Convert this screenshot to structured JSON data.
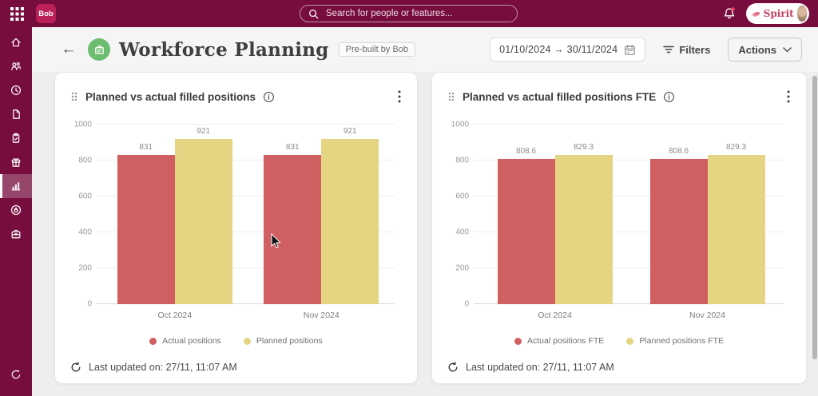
{
  "topbar": {
    "logo": "Bob",
    "search_placeholder": "Search for people or features...",
    "workspace_label": "Spirit"
  },
  "sidebar": {
    "items": [
      {
        "icon": "home"
      },
      {
        "icon": "people"
      },
      {
        "icon": "clock"
      },
      {
        "icon": "document"
      },
      {
        "icon": "clipboard"
      },
      {
        "icon": "gift"
      },
      {
        "icon": "bar-chart",
        "active": true
      },
      {
        "icon": "privacy-lock"
      },
      {
        "icon": "briefcase"
      }
    ],
    "bottom_icon": "whats-new"
  },
  "header": {
    "title": "Workforce Planning",
    "badge": "Pre-built by Bob",
    "date_range": "01/10/2024 → 30/11/2024",
    "filters_label": "Filters",
    "actions_label": "Actions"
  },
  "cards": [
    {
      "last_updated": "Last updated on: 27/11, 11:07 AM"
    },
    {
      "last_updated": "Last updated on: 27/11, 11:07 AM"
    }
  ],
  "colors": {
    "topbar": "#770d3e",
    "logo_badge": "#bb2059",
    "accent_green": "#6cbd6f",
    "bar_red": "#d05f62",
    "bar_yellow": "#e5d583"
  },
  "chart_data": [
    {
      "type": "bar",
      "title": "Planned vs actual filled positions",
      "categories": [
        "Oct 2024",
        "Nov 2024"
      ],
      "series": [
        {
          "name": "Actual positions",
          "color": "#d05f62",
          "values": [
            831,
            831
          ]
        },
        {
          "name": "Planned positions",
          "color": "#e5d583",
          "values": [
            921,
            921
          ]
        }
      ],
      "xlabel": "",
      "ylabel": "",
      "ylim": [
        0,
        1000
      ],
      "yticks": [
        0,
        200,
        400,
        600,
        800,
        1000
      ],
      "grid": true,
      "legend_position": "bottom"
    },
    {
      "type": "bar",
      "title": "Planned vs actual filled positions FTE",
      "categories": [
        "Oct 2024",
        "Nov 2024"
      ],
      "series": [
        {
          "name": "Actual positions FTE",
          "color": "#d05f62",
          "values": [
            808.6,
            808.6
          ]
        },
        {
          "name": "Planned positions FTE",
          "color": "#e5d583",
          "values": [
            829.3,
            829.3
          ]
        }
      ],
      "xlabel": "",
      "ylabel": "",
      "ylim": [
        0,
        1000
      ],
      "yticks": [
        0,
        200,
        400,
        600,
        800,
        1000
      ],
      "grid": true,
      "legend_position": "bottom"
    }
  ]
}
